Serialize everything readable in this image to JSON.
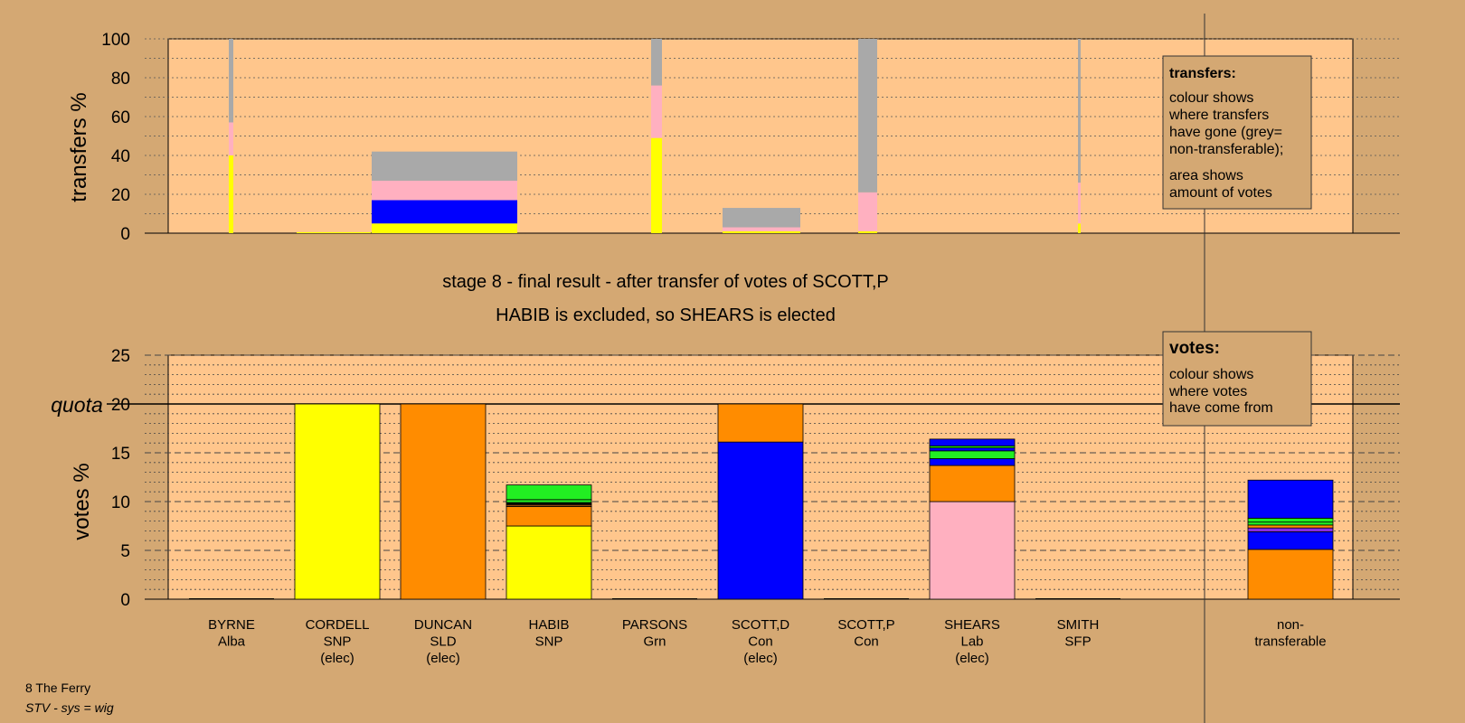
{
  "colors": {
    "background": "#d4a873",
    "plot_fill": "#ffc68c",
    "legend_fill": "#d4a873",
    "yellow": "#ffff00",
    "orange": "#ff8c00",
    "blue": "#0000ff",
    "pink": "#ffb0c0",
    "grey": "#a9a9a9",
    "green": "#22ee22",
    "purple": "#8a2be2",
    "black": "#000000",
    "brown": "#8b4513"
  },
  "header": {
    "stage": "stage 8 - final result - after transfer of votes of SCOTT,P",
    "outcome": "HABIB is excluded, so SHEARS is elected"
  },
  "footer": {
    "ward": "8 The Ferry",
    "system": "STV - sys = wig"
  },
  "legends": {
    "transfers": {
      "title": "transfers:",
      "lines1": [
        "colour shows",
        "where transfers",
        "have gone (grey=",
        "non-transferable);"
      ],
      "lines2": [
        "area shows",
        "amount of votes"
      ]
    },
    "votes": {
      "title": "votes:",
      "lines": [
        "colour shows",
        "where votes",
        "have come from"
      ]
    }
  },
  "quota_label": "quota",
  "chart_data": [
    {
      "type": "bar",
      "name": "transfers",
      "ylabel": "transfers %",
      "ylim": [
        0,
        100
      ],
      "yticks": [
        0,
        20,
        40,
        60,
        80,
        100
      ],
      "grid": true,
      "stacked": true,
      "note": "bar width proportional to votes transferred",
      "bars": [
        {
          "candidate": "BYRNE",
          "segments": [
            {
              "color": "yellow",
              "value": 40
            },
            {
              "color": "pink",
              "value": 17
            },
            {
              "color": "grey",
              "value": 43
            }
          ]
        },
        {
          "candidate": "CORDELL",
          "segments": [
            {
              "color": "yellow",
              "value": 0.5
            }
          ]
        },
        {
          "candidate": "DUNCAN",
          "segments": [
            {
              "color": "yellow",
              "value": 5
            },
            {
              "color": "blue",
              "value": 12
            },
            {
              "color": "pink",
              "value": 10
            },
            {
              "color": "grey",
              "value": 15
            }
          ]
        },
        {
          "candidate": "PARSONS",
          "segments": [
            {
              "color": "yellow",
              "value": 49
            },
            {
              "color": "pink",
              "value": 27
            },
            {
              "color": "grey",
              "value": 24
            }
          ]
        },
        {
          "candidate": "SCOTT,D",
          "segments": [
            {
              "color": "yellow",
              "value": 1
            },
            {
              "color": "pink",
              "value": 2
            },
            {
              "color": "grey",
              "value": 10
            }
          ]
        },
        {
          "candidate": "SCOTT,P",
          "segments": [
            {
              "color": "yellow",
              "value": 1
            },
            {
              "color": "pink",
              "value": 20
            },
            {
              "color": "grey",
              "value": 79
            }
          ]
        },
        {
          "candidate": "SMITH",
          "segments": [
            {
              "color": "yellow",
              "value": 5
            },
            {
              "color": "pink",
              "value": 21
            },
            {
              "color": "grey",
              "value": 74
            }
          ]
        }
      ]
    },
    {
      "type": "bar",
      "name": "votes",
      "ylabel": "votes %",
      "ylim": [
        0,
        25
      ],
      "yticks": [
        0,
        5,
        10,
        15,
        20,
        25
      ],
      "quota": 20,
      "grid": true,
      "stacked": true,
      "categories": [
        {
          "name": "BYRNE",
          "party": "Alba",
          "status": ""
        },
        {
          "name": "CORDELL",
          "party": "SNP",
          "status": "(elec)"
        },
        {
          "name": "DUNCAN",
          "party": "SLD",
          "status": "(elec)"
        },
        {
          "name": "HABIB",
          "party": "SNP",
          "status": ""
        },
        {
          "name": "PARSONS",
          "party": "Grn",
          "status": ""
        },
        {
          "name": "SCOTT,D",
          "party": "Con",
          "status": "(elec)"
        },
        {
          "name": "SCOTT,P",
          "party": "Con",
          "status": ""
        },
        {
          "name": "SHEARS",
          "party": "Lab",
          "status": "(elec)"
        },
        {
          "name": "SMITH",
          "party": "SFP",
          "status": ""
        },
        {
          "name": "non-",
          "party": "transferable",
          "status": ""
        }
      ],
      "bars": [
        {
          "candidate": "BYRNE",
          "segments": []
        },
        {
          "candidate": "CORDELL",
          "segments": [
            {
              "color": "yellow",
              "value": 20
            }
          ]
        },
        {
          "candidate": "DUNCAN",
          "segments": [
            {
              "color": "orange",
              "value": 20
            }
          ]
        },
        {
          "candidate": "HABIB",
          "segments": [
            {
              "color": "yellow",
              "value": 7.5
            },
            {
              "color": "orange",
              "value": 2
            },
            {
              "color": "brown",
              "value": 0.2
            },
            {
              "color": "black",
              "value": 0.2
            },
            {
              "color": "green",
              "value": 0.3
            },
            {
              "color": "green",
              "value": 1.5
            }
          ]
        },
        {
          "candidate": "PARSONS",
          "segments": []
        },
        {
          "candidate": "SCOTT,D",
          "segments": [
            {
              "color": "blue",
              "value": 16.1
            },
            {
              "color": "orange",
              "value": 3.9
            }
          ]
        },
        {
          "candidate": "SCOTT,P",
          "segments": []
        },
        {
          "candidate": "SHEARS",
          "segments": [
            {
              "color": "pink",
              "value": 10
            },
            {
              "color": "orange",
              "value": 3.7
            },
            {
              "color": "blue",
              "value": 0.7
            },
            {
              "color": "green",
              "value": 0.8
            },
            {
              "color": "blue",
              "value": 0.3
            },
            {
              "color": "green",
              "value": 0.2
            },
            {
              "color": "blue",
              "value": 0.7
            }
          ]
        },
        {
          "candidate": "SMITH",
          "segments": []
        },
        {
          "candidate": "non-transferable",
          "segments": [
            {
              "color": "orange",
              "value": 5.1
            },
            {
              "color": "blue",
              "value": 1.8
            },
            {
              "color": "purple",
              "value": 0.4
            },
            {
              "color": "orange",
              "value": 0.3
            },
            {
              "color": "green",
              "value": 0.3
            },
            {
              "color": "green",
              "value": 0.4
            },
            {
              "color": "blue",
              "value": 3.9
            }
          ]
        }
      ]
    }
  ]
}
